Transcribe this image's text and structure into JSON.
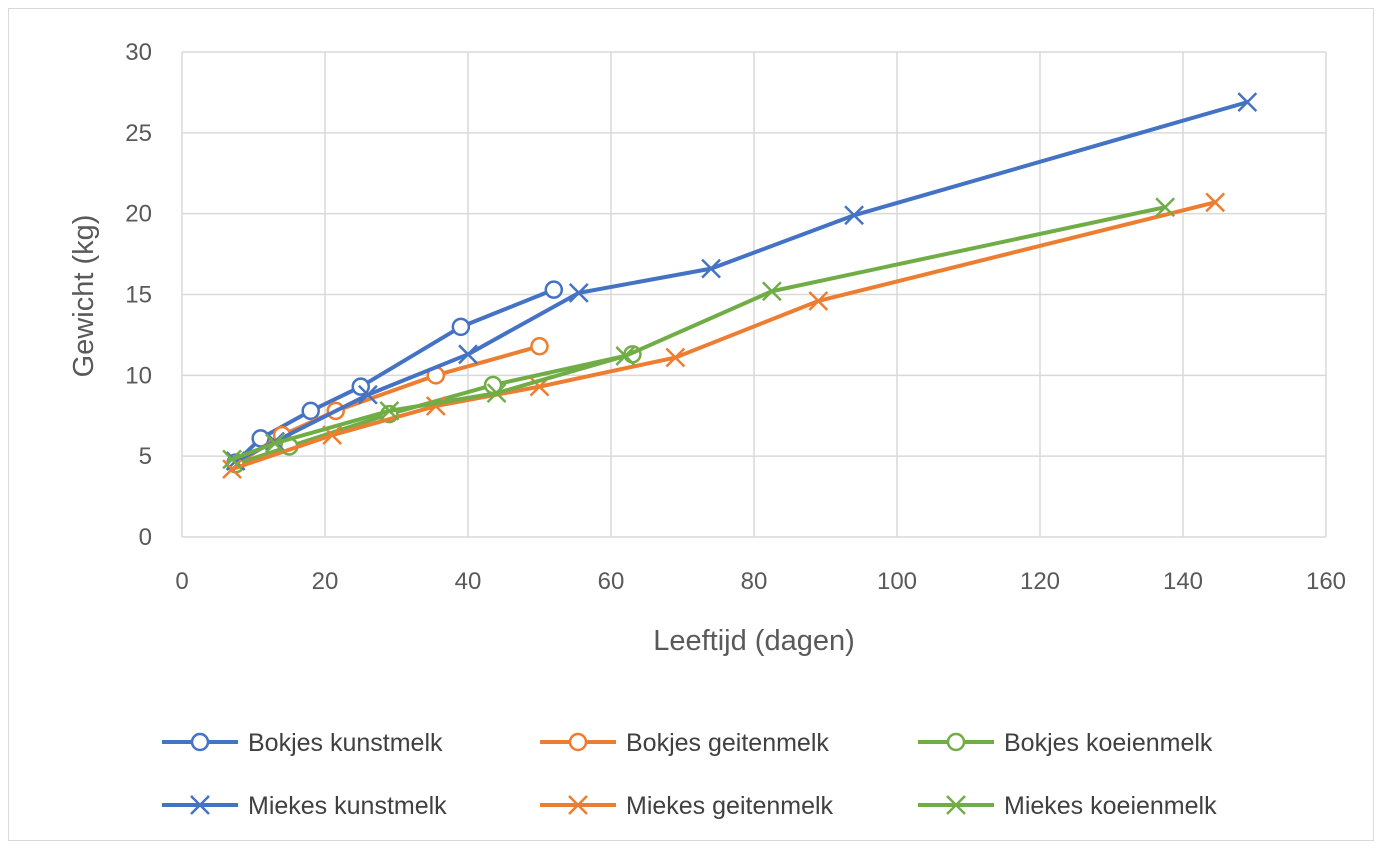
{
  "chart_data": {
    "type": "scatter",
    "title": "",
    "xlabel": "Leeftijd (dagen)",
    "ylabel": "Gewicht (kg)",
    "xlim": [
      0,
      160
    ],
    "ylim": [
      0,
      30
    ],
    "xticks": [
      "0",
      "20",
      "40",
      "60",
      "80",
      "100",
      "120",
      "140",
      "160"
    ],
    "yticks": [
      "0",
      "5",
      "10",
      "15",
      "20",
      "25",
      "30"
    ],
    "grid": true,
    "legend_position": "bottom",
    "series": [
      {
        "name": "Bokjes kunstmelk",
        "color": "#4472C4",
        "marker": "circle",
        "x": [
          7.5,
          11,
          18,
          25,
          39,
          52
        ],
        "y": [
          4.6,
          6.1,
          7.8,
          9.3,
          13.0,
          15.3
        ]
      },
      {
        "name": "Bokjes geitenmelk",
        "color": "#ED7D31",
        "marker": "circle",
        "x": [
          7.5,
          14,
          21.5,
          35.5,
          50
        ],
        "y": [
          4.5,
          6.3,
          7.8,
          10.0,
          11.8
        ]
      },
      {
        "name": "Bokjes koeienmelk",
        "color": "#70AD47",
        "marker": "circle",
        "x": [
          7.5,
          15,
          29,
          43.5,
          63
        ],
        "y": [
          4.5,
          5.6,
          7.6,
          9.4,
          11.3
        ]
      },
      {
        "name": "Miekes kunstmelk",
        "color": "#4472C4",
        "marker": "x",
        "x": [
          7.5,
          13,
          26,
          40,
          55.5,
          74,
          94,
          149
        ],
        "y": [
          4.7,
          5.9,
          8.8,
          11.3,
          15.1,
          16.6,
          19.9,
          26.9
        ]
      },
      {
        "name": "Miekes geitenmelk",
        "color": "#ED7D31",
        "marker": "x",
        "x": [
          7,
          21,
          35.5,
          50,
          69,
          89,
          144.5
        ],
        "y": [
          4.2,
          6.3,
          8.1,
          9.3,
          11.1,
          14.6,
          20.7
        ]
      },
      {
        "name": "Miekes koeienmelk",
        "color": "#70AD47",
        "marker": "x",
        "x": [
          7,
          13,
          29,
          44,
          62,
          82.5,
          137.5
        ],
        "y": [
          4.8,
          5.8,
          7.8,
          8.9,
          11.2,
          15.2,
          20.4
        ]
      }
    ]
  }
}
